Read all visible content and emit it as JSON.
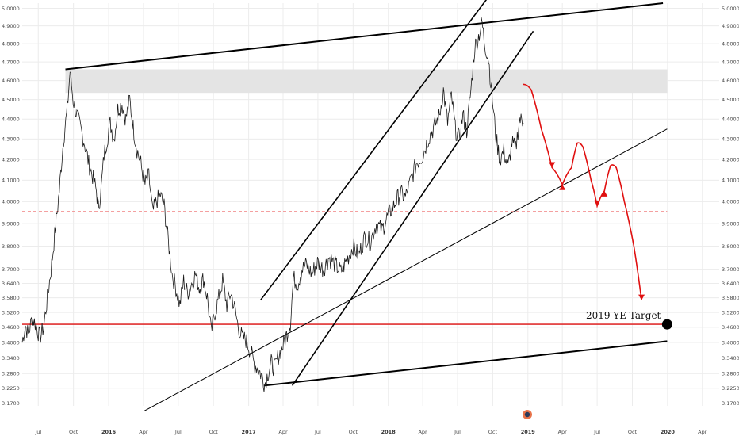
{
  "colors": {
    "background": "#ffffff",
    "grid": "#ececec",
    "price": "#1a1a1a",
    "trend": "#000000",
    "support": "#e03030",
    "dashed": "#f08080",
    "forecast": "#e01010",
    "zone": "#e4e4e4",
    "target_dot": "#000000"
  },
  "chart_data": {
    "type": "line",
    "title": "",
    "xlabel": "",
    "ylabel": "",
    "grid": true,
    "y_scale": "log",
    "ylim": [
      3.16,
      5.03
    ],
    "xlim": [
      "2015-05-20",
      "2020-05-15"
    ],
    "y_ticks": [
      "3.1700",
      "3.2250",
      "3.2800",
      "3.3400",
      "3.4000",
      "3.4600",
      "3.5200",
      "3.5800",
      "3.6400",
      "3.7000",
      "3.8000",
      "3.9000",
      "4.0000",
      "4.1000",
      "4.2000",
      "4.3000",
      "4.4000",
      "4.5000",
      "4.6000",
      "4.7000",
      "4.8000",
      "4.9000",
      "5.0000"
    ],
    "x_ticks": [
      {
        "label": "Jul",
        "date": "2015-07-01",
        "year": false
      },
      {
        "label": "Oct",
        "date": "2015-10-01",
        "year": false
      },
      {
        "label": "2016",
        "date": "2016-01-01",
        "year": true
      },
      {
        "label": "Apr",
        "date": "2016-04-01",
        "year": false
      },
      {
        "label": "Jul",
        "date": "2016-07-01",
        "year": false
      },
      {
        "label": "Oct",
        "date": "2016-10-01",
        "year": false
      },
      {
        "label": "2017",
        "date": "2017-01-01",
        "year": true
      },
      {
        "label": "Apr",
        "date": "2017-04-01",
        "year": false
      },
      {
        "label": "Jul",
        "date": "2017-07-01",
        "year": false
      },
      {
        "label": "Oct",
        "date": "2017-10-01",
        "year": false
      },
      {
        "label": "2018",
        "date": "2018-01-01",
        "year": true
      },
      {
        "label": "Apr",
        "date": "2018-04-01",
        "year": false
      },
      {
        "label": "Jul",
        "date": "2018-07-01",
        "year": false
      },
      {
        "label": "Oct",
        "date": "2018-10-01",
        "year": false
      },
      {
        "label": "2019",
        "date": "2019-01-01",
        "year": true
      },
      {
        "label": "Apr",
        "date": "2019-04-01",
        "year": false
      },
      {
        "label": "Jul",
        "date": "2019-07-01",
        "year": false
      },
      {
        "label": "Oct",
        "date": "2019-10-01",
        "year": false
      },
      {
        "label": "2020",
        "date": "2020-01-01",
        "year": true
      },
      {
        "label": "Apr",
        "date": "2020-04-01",
        "year": false
      }
    ],
    "series": [
      {
        "points": [
          [
            "2015-05-20",
            3.4
          ],
          [
            "2015-05-28",
            3.47
          ],
          [
            "2015-06-05",
            3.43
          ],
          [
            "2015-06-15",
            3.5
          ],
          [
            "2015-06-25",
            3.47
          ],
          [
            "2015-07-05",
            3.42
          ],
          [
            "2015-07-15",
            3.46
          ],
          [
            "2015-07-25",
            3.58
          ],
          [
            "2015-08-05",
            3.72
          ],
          [
            "2015-08-15",
            3.88
          ],
          [
            "2015-08-25",
            4.05
          ],
          [
            "2015-09-05",
            4.3
          ],
          [
            "2015-09-15",
            4.45
          ],
          [
            "2015-09-22",
            4.65
          ],
          [
            "2015-09-30",
            4.5
          ],
          [
            "2015-10-10",
            4.42
          ],
          [
            "2015-10-20",
            4.35
          ],
          [
            "2015-10-30",
            4.28
          ],
          [
            "2015-11-10",
            4.18
          ],
          [
            "2015-11-20",
            4.12
          ],
          [
            "2015-11-30",
            4.05
          ],
          [
            "2015-12-05",
            3.97
          ],
          [
            "2015-12-12",
            4.05
          ],
          [
            "2015-12-20",
            4.22
          ],
          [
            "2016-01-05",
            4.38
          ],
          [
            "2016-01-15",
            4.3
          ],
          [
            "2016-01-25",
            4.45
          ],
          [
            "2016-02-05",
            4.48
          ],
          [
            "2016-02-15",
            4.4
          ],
          [
            "2016-02-25",
            4.5
          ],
          [
            "2016-03-05",
            4.36
          ],
          [
            "2016-03-15",
            4.25
          ],
          [
            "2016-03-25",
            4.18
          ],
          [
            "2016-04-05",
            4.08
          ],
          [
            "2016-04-15",
            4.12
          ],
          [
            "2016-04-25",
            3.95
          ],
          [
            "2016-05-05",
            4.0
          ],
          [
            "2016-05-15",
            4.03
          ],
          [
            "2016-05-25",
            3.98
          ],
          [
            "2016-06-05",
            3.82
          ],
          [
            "2016-06-15",
            3.68
          ],
          [
            "2016-06-25",
            3.62
          ],
          [
            "2016-07-05",
            3.55
          ],
          [
            "2016-07-15",
            3.65
          ],
          [
            "2016-07-25",
            3.6
          ],
          [
            "2016-08-05",
            3.64
          ],
          [
            "2016-08-15",
            3.68
          ],
          [
            "2016-08-25",
            3.62
          ],
          [
            "2016-09-05",
            3.66
          ],
          [
            "2016-09-15",
            3.58
          ],
          [
            "2016-09-25",
            3.44
          ],
          [
            "2016-10-05",
            3.52
          ],
          [
            "2016-10-15",
            3.58
          ],
          [
            "2016-10-25",
            3.65
          ],
          [
            "2016-11-05",
            3.55
          ],
          [
            "2016-11-15",
            3.6
          ],
          [
            "2016-11-25",
            3.54
          ],
          [
            "2016-12-05",
            3.46
          ],
          [
            "2016-12-15",
            3.42
          ],
          [
            "2016-12-25",
            3.41
          ],
          [
            "2017-01-05",
            3.37
          ],
          [
            "2017-01-15",
            3.32
          ],
          [
            "2017-01-25",
            3.3
          ],
          [
            "2017-02-05",
            3.27
          ],
          [
            "2017-02-12",
            3.24
          ],
          [
            "2017-02-20",
            3.28
          ],
          [
            "2017-03-01",
            3.32
          ],
          [
            "2017-03-10",
            3.3
          ],
          [
            "2017-03-20",
            3.35
          ],
          [
            "2017-03-30",
            3.38
          ],
          [
            "2017-04-10",
            3.43
          ],
          [
            "2017-04-20",
            3.48
          ],
          [
            "2017-04-28",
            3.66
          ],
          [
            "2017-05-10",
            3.64
          ],
          [
            "2017-05-20",
            3.7
          ],
          [
            "2017-06-01",
            3.72
          ],
          [
            "2017-06-15",
            3.68
          ],
          [
            "2017-06-30",
            3.73
          ],
          [
            "2017-07-15",
            3.7
          ],
          [
            "2017-07-30",
            3.75
          ],
          [
            "2017-08-15",
            3.72
          ],
          [
            "2017-08-30",
            3.69
          ],
          [
            "2017-09-15",
            3.74
          ],
          [
            "2017-10-01",
            3.8
          ],
          [
            "2017-10-15",
            3.76
          ],
          [
            "2017-11-01",
            3.84
          ],
          [
            "2017-11-15",
            3.82
          ],
          [
            "2017-12-01",
            3.9
          ],
          [
            "2017-12-15",
            3.87
          ],
          [
            "2018-01-01",
            3.94
          ],
          [
            "2018-01-15",
            3.98
          ],
          [
            "2018-02-01",
            4.04
          ],
          [
            "2018-02-15",
            4.02
          ],
          [
            "2018-03-01",
            4.1
          ],
          [
            "2018-03-15",
            4.18
          ],
          [
            "2018-04-01",
            4.22
          ],
          [
            "2018-04-15",
            4.3
          ],
          [
            "2018-05-01",
            4.36
          ],
          [
            "2018-05-15",
            4.42
          ],
          [
            "2018-05-25",
            4.55
          ],
          [
            "2018-06-05",
            4.38
          ],
          [
            "2018-06-15",
            4.52
          ],
          [
            "2018-06-25",
            4.35
          ],
          [
            "2018-07-05",
            4.3
          ],
          [
            "2018-07-15",
            4.42
          ],
          [
            "2018-07-25",
            4.34
          ],
          [
            "2018-08-05",
            4.55
          ],
          [
            "2018-08-15",
            4.78
          ],
          [
            "2018-08-25",
            4.84
          ],
          [
            "2018-09-03",
            4.92
          ],
          [
            "2018-09-10",
            4.8
          ],
          [
            "2018-09-20",
            4.72
          ],
          [
            "2018-09-30",
            4.5
          ],
          [
            "2018-10-10",
            4.3
          ],
          [
            "2018-10-20",
            4.2
          ],
          [
            "2018-10-30",
            4.24
          ],
          [
            "2018-11-10",
            4.16
          ],
          [
            "2018-11-20",
            4.28
          ],
          [
            "2018-11-30",
            4.25
          ],
          [
            "2018-12-10",
            4.4
          ],
          [
            "2018-12-20",
            4.38
          ]
        ]
      }
    ],
    "resistance_zone": [
      4.535,
      4.66
    ],
    "dashed_level": 3.955,
    "support_level": 3.472,
    "trend_lines": [
      {
        "start": [
          "2015-09-10",
          4.66
        ],
        "end": [
          "2019-12-20",
          5.03
        ],
        "weight": 2
      },
      {
        "start": [
          "2017-02-10",
          3.235
        ],
        "end": [
          "2019-12-31",
          3.405
        ],
        "weight": 2
      },
      {
        "start": [
          "2017-02-01",
          3.57
        ],
        "end": [
          "2018-10-01",
          5.1
        ],
        "weight": 1.6
      },
      {
        "start": [
          "2017-04-25",
          3.235
        ],
        "end": [
          "2019-01-15",
          4.87
        ],
        "weight": 1.6
      },
      {
        "start": [
          "2016-04-01",
          3.14
        ],
        "end": [
          "2019-12-31",
          4.35
        ],
        "weight": 1
      }
    ],
    "forecast": [
      [
        "2018-12-20",
        4.58
      ],
      [
        "2019-01-10",
        4.55
      ],
      [
        "2019-02-05",
        4.35
      ],
      [
        "2019-03-05",
        4.16
      ],
      [
        "2019-04-01",
        4.08
      ],
      [
        "2019-04-25",
        4.16
      ],
      [
        "2019-05-10",
        4.28
      ],
      [
        "2019-05-25",
        4.26
      ],
      [
        "2019-06-15",
        4.1
      ],
      [
        "2019-07-01",
        3.98
      ],
      [
        "2019-07-20",
        4.05
      ],
      [
        "2019-08-05",
        4.17
      ],
      [
        "2019-08-20",
        4.16
      ],
      [
        "2019-09-10",
        4.0
      ],
      [
        "2019-10-05",
        3.8
      ],
      [
        "2019-10-25",
        3.57
      ]
    ],
    "annotations": [
      {
        "text": "2019 YE Target",
        "date": "2019-12-31",
        "value": 3.472
      }
    ]
  }
}
